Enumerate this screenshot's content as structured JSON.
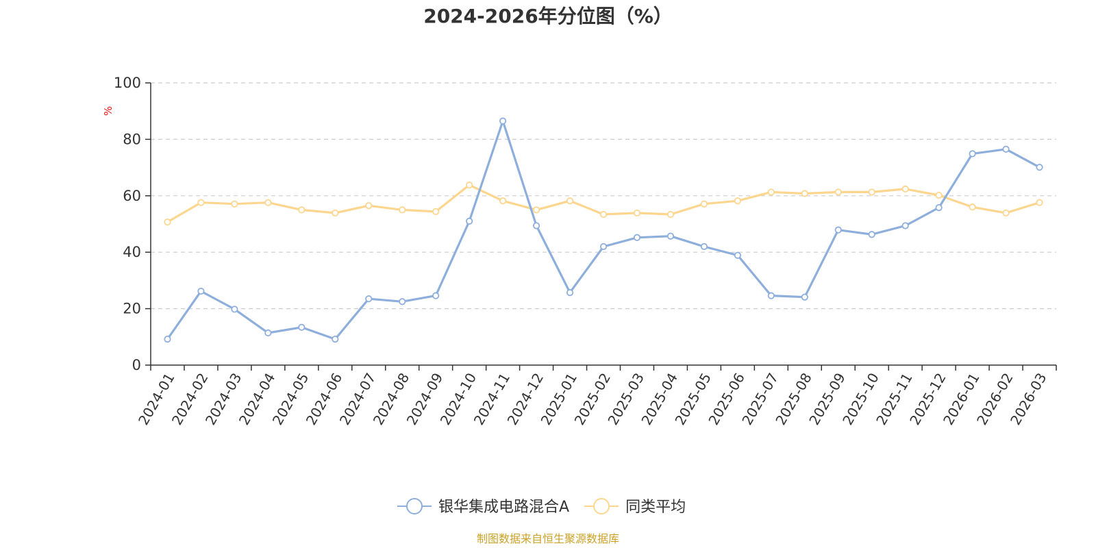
{
  "chart_data": {
    "type": "line",
    "title": "2024-2026年分位图（%）",
    "y_unit": "%",
    "ylim": [
      0,
      100
    ],
    "yticks": [
      0,
      20,
      40,
      60,
      80,
      100
    ],
    "grid": "horizontal-dashed",
    "legend_position": "bottom-center",
    "categories": [
      "2024-01",
      "2024-02",
      "2024-03",
      "2024-04",
      "2024-05",
      "2024-06",
      "2024-07",
      "2024-08",
      "2024-09",
      "2024-10",
      "2024-11",
      "2024-12",
      "2025-01",
      "2025-02",
      "2025-03",
      "2025-04",
      "2025-05",
      "2025-06",
      "2025-07",
      "2025-08",
      "2025-09",
      "2025-10",
      "2025-11",
      "2025-12",
      "2026-01",
      "2026-02",
      "2026-03"
    ],
    "series": [
      {
        "name": "银华集成电路混合A",
        "color": "#8eaedb",
        "values": [
          9.2,
          26.2,
          19.8,
          11.4,
          13.4,
          9.2,
          23.5,
          22.5,
          24.6,
          51.0,
          86.5,
          49.4,
          25.7,
          42.0,
          45.2,
          45.7,
          42.0,
          38.9,
          24.6,
          24.1,
          47.9,
          46.3,
          49.4,
          55.8,
          74.9,
          76.5,
          70.1
        ]
      },
      {
        "name": "同类平均",
        "color": "#fcd68f",
        "values": [
          50.7,
          57.6,
          57.1,
          57.6,
          55.0,
          53.9,
          56.5,
          55.0,
          54.4,
          63.8,
          58.2,
          55.0,
          58.2,
          53.4,
          53.9,
          53.4,
          57.1,
          58.2,
          61.3,
          60.8,
          61.3,
          61.3,
          62.4,
          60.2,
          56.0,
          53.9,
          57.6
        ]
      }
    ]
  },
  "footer": {
    "source_text": "制图数据来自恒生聚源数据库",
    "source_color": "#c9a227"
  },
  "colors": {
    "text": "#333333",
    "axis": "#333333",
    "grid": "#cccccc",
    "unit": "#ee1111"
  }
}
